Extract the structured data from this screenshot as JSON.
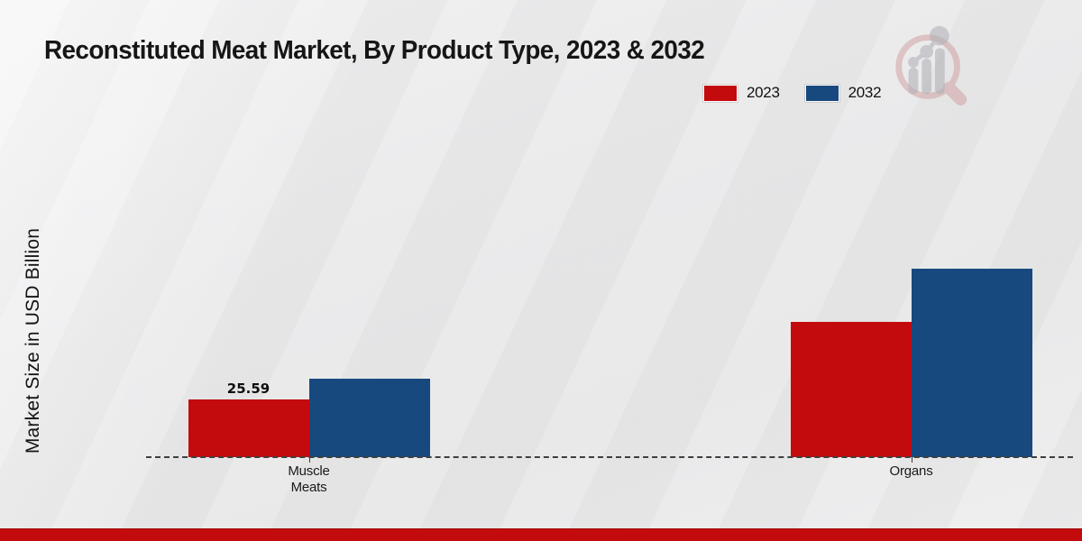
{
  "title": "Reconstituted Meat Market, By Product Type, 2023 & 2032",
  "y_axis_label": "Market Size in USD Billion",
  "legend": [
    {
      "label": "2023",
      "color": "#c30b0e"
    },
    {
      "label": "2032",
      "color": "#17497f"
    }
  ],
  "footer_bar_color": "#c30b0e",
  "icons": {
    "logo": "magnifier-bar-chart-logo"
  },
  "chart_data": {
    "type": "bar",
    "title": "Reconstituted Meat Market, By Product Type, 2023 & 2032",
    "xlabel": "",
    "ylabel": "Market Size in USD Billion",
    "categories": [
      "Muscle\nMeats",
      "Organs"
    ],
    "series": [
      {
        "name": "2023",
        "color": "#c30b0e",
        "values": [
          25.59,
          60.0
        ],
        "value_labels": [
          "25.59",
          ""
        ]
      },
      {
        "name": "2032",
        "color": "#17497f",
        "values": [
          35.0,
          83.6
        ],
        "value_labels": [
          "",
          ""
        ]
      }
    ],
    "ylim": [
      0,
      95
    ],
    "grid": false,
    "y_tick_labels": false,
    "legend_position": "top-right",
    "baseline_style": "dashed"
  }
}
